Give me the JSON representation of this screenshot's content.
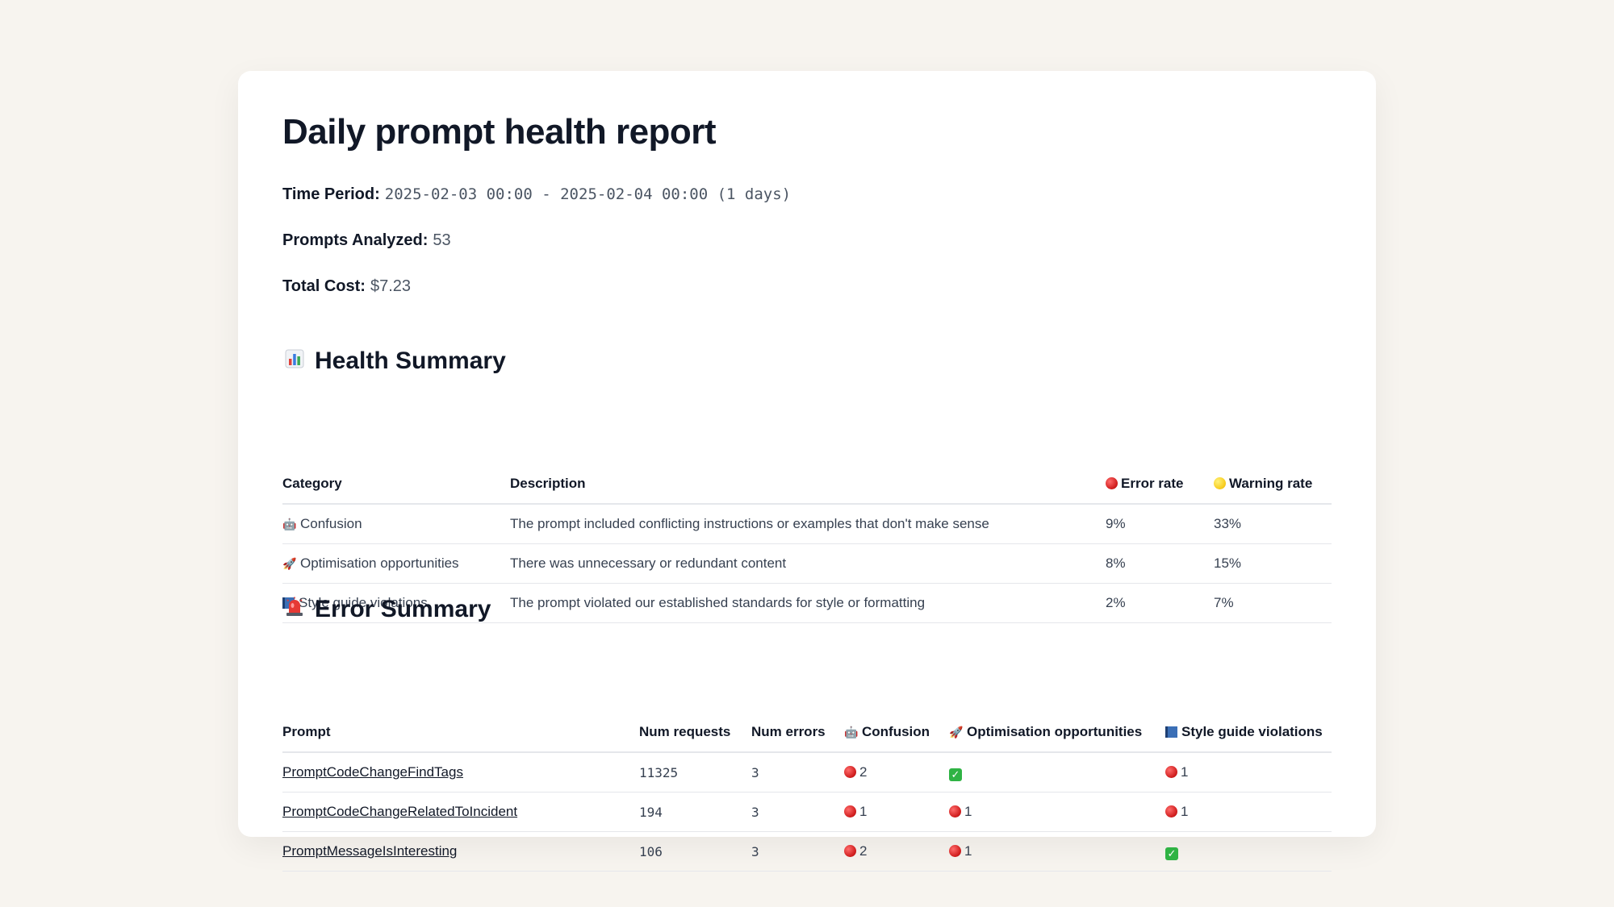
{
  "report": {
    "title": "Daily prompt health report",
    "time_period_label": "Time Period:",
    "time_period_value": "2025-02-03 00:00 - 2025-02-04 00:00 (1 days)",
    "prompts_analyzed_label": "Prompts Analyzed:",
    "prompts_analyzed_value": "53",
    "total_cost_label": "Total Cost:",
    "total_cost_value": "$7.23"
  },
  "health_summary": {
    "icon": "bar-chart-icon",
    "title": "Health Summary",
    "headers": {
      "category": "Category",
      "description": "Description",
      "error_rate": "Error rate",
      "warning_rate": "Warning rate"
    },
    "rows": [
      {
        "icon": "robot-icon",
        "category": "Confusion",
        "description": "The prompt included conflicting instructions or examples that don't make sense",
        "error_rate": "9%",
        "warning_rate": "33%"
      },
      {
        "icon": "rocket-icon",
        "category": "Optimisation opportunities",
        "description": "There was unnecessary or redundant content",
        "error_rate": "8%",
        "warning_rate": "15%"
      },
      {
        "icon": "book-icon",
        "category": "Style guide violations",
        "description": "The prompt violated our established standards for style or formatting",
        "error_rate": "2%",
        "warning_rate": "7%"
      }
    ]
  },
  "error_summary": {
    "icon": "siren-icon",
    "title": "Error Summary",
    "headers": {
      "prompt": "Prompt",
      "num_requests": "Num requests",
      "num_errors": "Num errors",
      "confusion": "Confusion",
      "optimisation": "Optimisation opportunities",
      "style": "Style guide violations"
    },
    "rows": [
      {
        "prompt": "PromptCodeChangeFindTags",
        "num_requests": "11325",
        "num_errors": "3",
        "confusion": "2",
        "optimisation": "",
        "style": "1"
      },
      {
        "prompt": "PromptCodeChangeRelatedToIncident",
        "num_requests": "194",
        "num_errors": "3",
        "confusion": "1",
        "optimisation": "1",
        "style": "1"
      },
      {
        "prompt": "PromptMessageIsInteresting",
        "num_requests": "106",
        "num_errors": "3",
        "confusion": "2",
        "optimisation": "1",
        "style": ""
      }
    ]
  },
  "colors": {
    "background": "#f7f4ef",
    "card": "#ffffff",
    "error_dot": "#d11f1f",
    "warning_dot": "#f8cd1f",
    "check": "#2fb344"
  }
}
